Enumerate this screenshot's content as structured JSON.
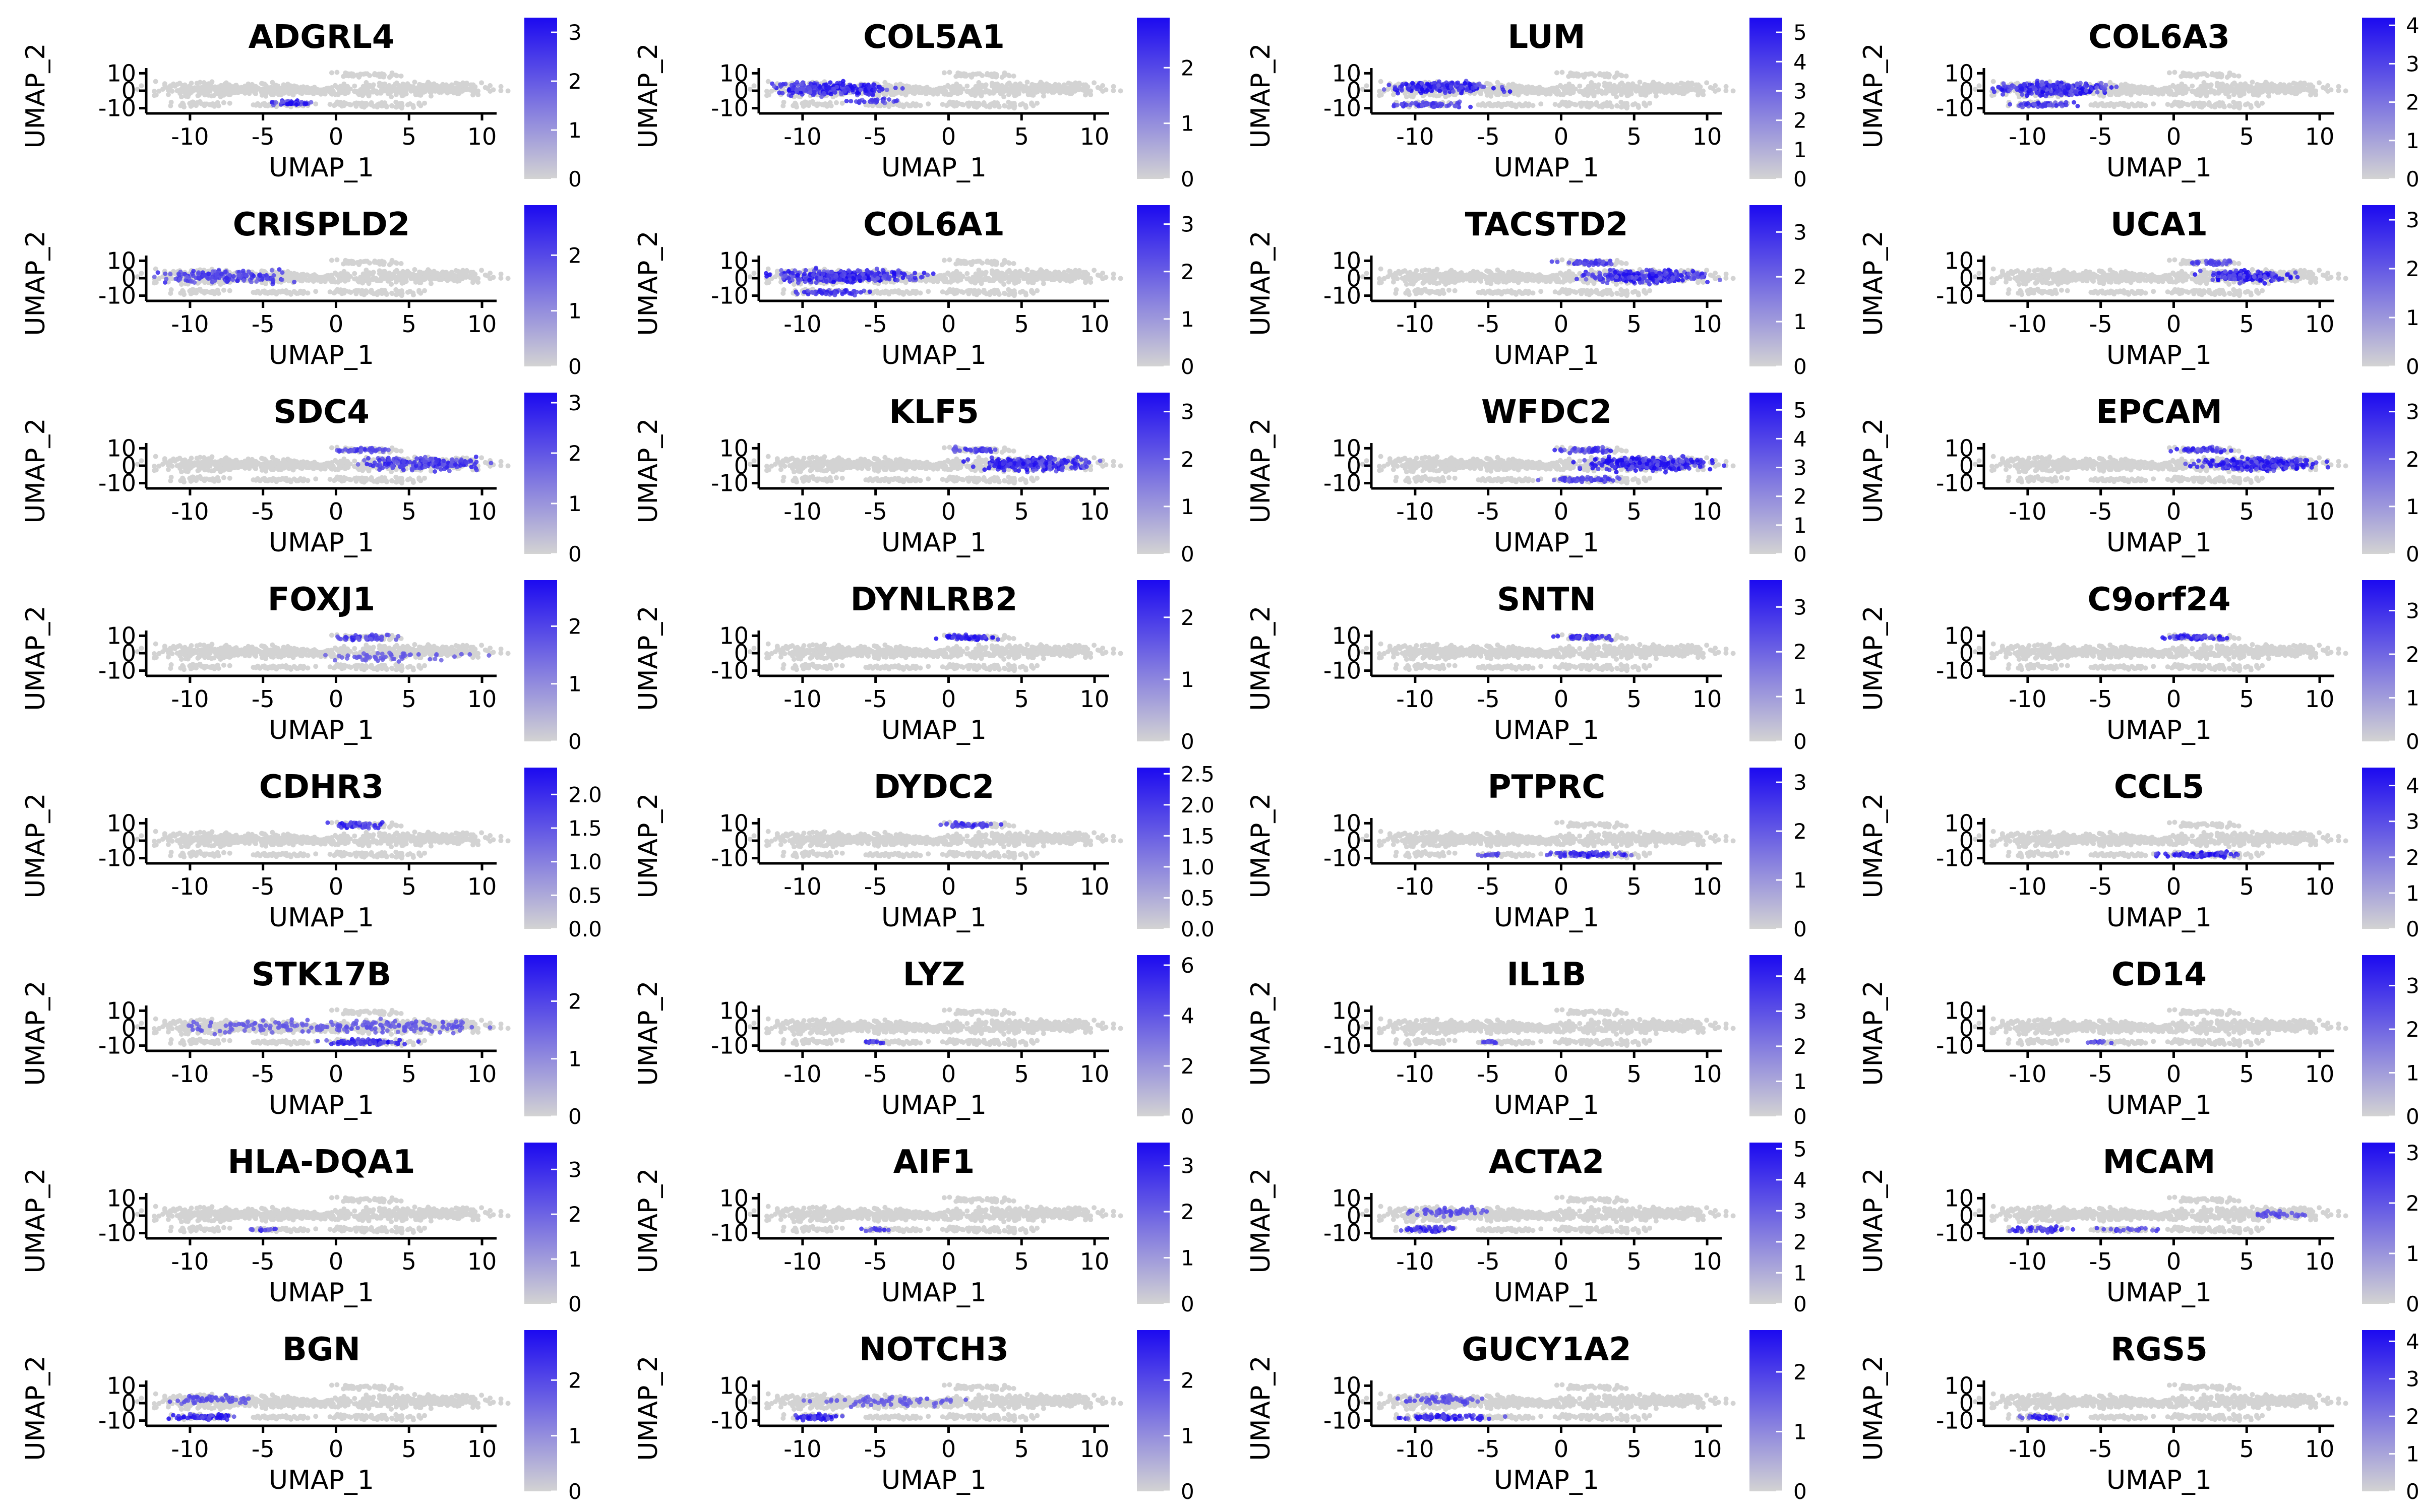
{
  "chart_data": {
    "type": "scatter",
    "description_layout": "8 rows x 4 columns of UMAP feature plots",
    "x_axis": {
      "label": "UMAP_1",
      "ticks": [
        -10,
        -5,
        0,
        5,
        10
      ],
      "range": [
        -13,
        11
      ]
    },
    "y_axis": {
      "label": "UMAP_2",
      "ticks": [
        10,
        0,
        -10
      ],
      "range": [
        -13,
        13
      ]
    },
    "colors": {
      "low": "#d3d3d3",
      "high": "#1c0af0"
    },
    "panels": [
      {
        "gene": "ADGRL4",
        "cbar_ticks": [
          "0",
          "1",
          "2",
          "3"
        ],
        "cbar_max": 3.3,
        "hot": [
          [
            -2.8,
            -7,
            1.4,
            1.2,
            0.9
          ]
        ]
      },
      {
        "gene": "COL5A1",
        "cbar_ticks": [
          "0",
          "1",
          "2"
        ],
        "cbar_max": 2.9,
        "hot": [
          [
            -8,
            1,
            4,
            3.5,
            0.8
          ],
          [
            -5,
            -6,
            2,
            1.2,
            0.5
          ]
        ]
      },
      {
        "gene": "LUM",
        "cbar_ticks": [
          "0",
          "1",
          "2",
          "3",
          "4",
          "5"
        ],
        "cbar_max": 5.5,
        "hot": [
          [
            -8,
            2,
            3.5,
            3,
            0.8
          ],
          [
            -9,
            -8,
            2.5,
            1.5,
            0.6
          ]
        ]
      },
      {
        "gene": "COL6A3",
        "cbar_ticks": [
          "0",
          "1",
          "2",
          "3",
          "4"
        ],
        "cbar_max": 4.2,
        "hot": [
          [
            -8,
            1,
            4,
            3.5,
            0.8
          ],
          [
            -9,
            -8,
            2.5,
            1.5,
            0.6
          ]
        ]
      },
      {
        "gene": "CRISPLD2",
        "cbar_ticks": [
          "0",
          "1",
          "2"
        ],
        "cbar_max": 2.9,
        "hot": [
          [
            -8,
            1,
            4,
            3.5,
            0.5
          ]
        ]
      },
      {
        "gene": "COL6A1",
        "cbar_ticks": [
          "0",
          "1",
          "2",
          "3"
        ],
        "cbar_max": 3.4,
        "hot": [
          [
            -7,
            1,
            5,
            3.5,
            0.8
          ],
          [
            -8,
            -8,
            2.5,
            1.5,
            0.6
          ]
        ]
      },
      {
        "gene": "TACSTD2",
        "cbar_ticks": [
          "0",
          "1",
          "2",
          "3"
        ],
        "cbar_max": 3.6,
        "hot": [
          [
            6,
            1,
            4,
            3.5,
            0.8
          ],
          [
            2,
            9,
            2,
            1.5,
            0.6
          ]
        ]
      },
      {
        "gene": "UCA1",
        "cbar_ticks": [
          "0",
          "1",
          "2",
          "3"
        ],
        "cbar_max": 3.3,
        "hot": [
          [
            5,
            1,
            3,
            3,
            0.8
          ],
          [
            3,
            9,
            2,
            1.5,
            0.4
          ]
        ]
      },
      {
        "gene": "SDC4",
        "cbar_ticks": [
          "0",
          "1",
          "2",
          "3"
        ],
        "cbar_max": 3.2,
        "hot": [
          [
            6,
            1,
            4,
            3.5,
            0.6
          ],
          [
            2,
            9,
            2,
            1.5,
            0.5
          ]
        ]
      },
      {
        "gene": "KLF5",
        "cbar_ticks": [
          "0",
          "1",
          "2",
          "3"
        ],
        "cbar_max": 3.4,
        "hot": [
          [
            6,
            1,
            4,
            3.5,
            0.8
          ],
          [
            2,
            9,
            2,
            1.5,
            0.5
          ]
        ]
      },
      {
        "gene": "WFDC2",
        "cbar_ticks": [
          "0",
          "1",
          "2",
          "3",
          "4",
          "5"
        ],
        "cbar_max": 5.6,
        "hot": [
          [
            6,
            1,
            4,
            3.5,
            0.9
          ],
          [
            2,
            9,
            2,
            1.5,
            0.6
          ],
          [
            2,
            -8,
            3,
            1.5,
            0.5
          ]
        ]
      },
      {
        "gene": "EPCAM",
        "cbar_ticks": [
          "0",
          "1",
          "2",
          "3"
        ],
        "cbar_max": 3.4,
        "hot": [
          [
            6,
            1,
            4,
            3.5,
            0.8
          ],
          [
            2,
            9,
            2,
            1.5,
            0.6
          ]
        ]
      },
      {
        "gene": "FOXJ1",
        "cbar_ticks": [
          "0",
          "1",
          "2"
        ],
        "cbar_max": 2.8,
        "hot": [
          [
            2,
            9,
            2,
            1.5,
            0.6
          ],
          [
            4,
            -2,
            5,
            3,
            0.15
          ]
        ]
      },
      {
        "gene": "DYNLRB2",
        "cbar_ticks": [
          "0",
          "1",
          "2"
        ],
        "cbar_max": 2.6,
        "hot": [
          [
            1.5,
            9,
            2,
            1.5,
            0.8
          ]
        ]
      },
      {
        "gene": "SNTN",
        "cbar_ticks": [
          "0",
          "1",
          "2",
          "3"
        ],
        "cbar_max": 3.6,
        "hot": [
          [
            1.5,
            9,
            2,
            1.5,
            0.7
          ]
        ]
      },
      {
        "gene": "C9orf24",
        "cbar_ticks": [
          "0",
          "1",
          "2",
          "3"
        ],
        "cbar_max": 3.7,
        "hot": [
          [
            1.5,
            9,
            2,
            1.5,
            0.8
          ]
        ]
      },
      {
        "gene": "CDHR3",
        "cbar_ticks": [
          "0.0",
          "0.5",
          "1.0",
          "1.5",
          "2.0"
        ],
        "cbar_max": 2.4,
        "hot": [
          [
            1.5,
            9,
            2,
            1.5,
            0.7
          ]
        ]
      },
      {
        "gene": "DYDC2",
        "cbar_ticks": [
          "0.0",
          "0.5",
          "1.0",
          "1.5",
          "2.0",
          "2.5"
        ],
        "cbar_max": 2.6,
        "hot": [
          [
            1.5,
            9,
            2,
            1.5,
            0.6
          ]
        ]
      },
      {
        "gene": "PTPRC",
        "cbar_ticks": [
          "0",
          "1",
          "2",
          "3"
        ],
        "cbar_max": 3.3,
        "hot": [
          [
            2,
            -8,
            3,
            1.5,
            0.7
          ],
          [
            -5,
            -8,
            0.8,
            0.8,
            0.5
          ]
        ]
      },
      {
        "gene": "CCL5",
        "cbar_ticks": [
          "0",
          "1",
          "2",
          "3",
          "4"
        ],
        "cbar_max": 4.5,
        "hot": [
          [
            2,
            -8,
            3,
            1.5,
            0.8
          ]
        ]
      },
      {
        "gene": "STK17B",
        "cbar_ticks": [
          "0",
          "1",
          "2"
        ],
        "cbar_max": 2.8,
        "hot": [
          [
            2,
            -8,
            3,
            1.5,
            0.7
          ],
          [
            -3,
            1,
            8,
            4,
            0.15
          ],
          [
            5,
            1,
            5,
            3.5,
            0.2
          ]
        ]
      },
      {
        "gene": "LYZ",
        "cbar_ticks": [
          "0",
          "2",
          "4",
          "6"
        ],
        "cbar_max": 6.4,
        "hot": [
          [
            -5,
            -8,
            0.8,
            0.8,
            0.7
          ]
        ]
      },
      {
        "gene": "IL1B",
        "cbar_ticks": [
          "0",
          "1",
          "2",
          "3",
          "4"
        ],
        "cbar_max": 4.6,
        "hot": [
          [
            -5,
            -8,
            0.8,
            0.8,
            0.6
          ]
        ]
      },
      {
        "gene": "CD14",
        "cbar_ticks": [
          "0",
          "1",
          "2",
          "3"
        ],
        "cbar_max": 3.7,
        "hot": [
          [
            -5,
            -8,
            0.8,
            0.8,
            0.5
          ]
        ]
      },
      {
        "gene": "HLA-DQA1",
        "cbar_ticks": [
          "0",
          "1",
          "2",
          "3"
        ],
        "cbar_max": 3.6,
        "hot": [
          [
            -5,
            -8,
            0.8,
            0.8,
            0.7
          ]
        ]
      },
      {
        "gene": "AIF1",
        "cbar_ticks": [
          "0",
          "1",
          "2",
          "3"
        ],
        "cbar_max": 3.5,
        "hot": [
          [
            -5,
            -8,
            0.8,
            0.8,
            0.6
          ]
        ]
      },
      {
        "gene": "ACTA2",
        "cbar_ticks": [
          "0",
          "1",
          "2",
          "3",
          "4",
          "5"
        ],
        "cbar_max": 5.2,
        "hot": [
          [
            -9,
            -8,
            2,
            1.5,
            0.7
          ],
          [
            -8,
            2,
            3,
            2.5,
            0.3
          ]
        ]
      },
      {
        "gene": "MCAM",
        "cbar_ticks": [
          "0",
          "1",
          "2",
          "3"
        ],
        "cbar_max": 3.2,
        "hot": [
          [
            -9,
            -8,
            2,
            1.5,
            0.6
          ],
          [
            -3,
            -8,
            2,
            1,
            0.4
          ],
          [
            7,
            1,
            2,
            2,
            0.3
          ]
        ]
      },
      {
        "gene": "BGN",
        "cbar_ticks": [
          "0",
          "1",
          "2"
        ],
        "cbar_max": 2.9,
        "hot": [
          [
            -9,
            -8,
            2,
            1.5,
            0.8
          ],
          [
            -8,
            2,
            3,
            2.5,
            0.3
          ]
        ]
      },
      {
        "gene": "NOTCH3",
        "cbar_ticks": [
          "0",
          "1",
          "2"
        ],
        "cbar_max": 2.9,
        "hot": [
          [
            -9,
            -8,
            2,
            1.5,
            0.8
          ],
          [
            -4,
            1,
            6,
            3,
            0.15
          ]
        ]
      },
      {
        "gene": "GUCY1A2",
        "cbar_ticks": [
          "0",
          "1",
          "2"
        ],
        "cbar_max": 2.7,
        "hot": [
          [
            -8,
            -8,
            3,
            1.5,
            0.8
          ],
          [
            -8,
            2,
            3,
            2.5,
            0.3
          ]
        ]
      },
      {
        "gene": "RGS5",
        "cbar_ticks": [
          "0",
          "1",
          "2",
          "3",
          "4"
        ],
        "cbar_max": 4.3,
        "hot": [
          [
            -9,
            -8,
            1.5,
            1.2,
            0.7
          ]
        ]
      }
    ]
  }
}
